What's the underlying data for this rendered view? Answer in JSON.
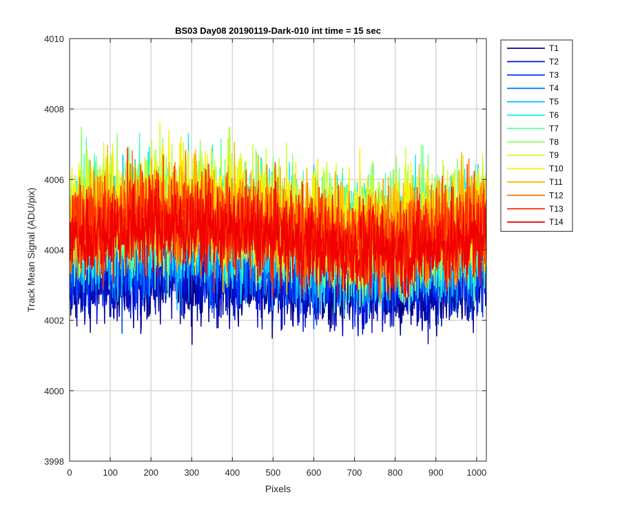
{
  "chart_data": {
    "type": "line",
    "title": "BS03 Day08 20190119-Dark-010 int time = 15 sec",
    "xlabel": "Pixels",
    "ylabel": "Track Mean Signal (ADU/pix)",
    "xlim": [
      0,
      1024
    ],
    "ylim": [
      3998,
      4010
    ],
    "xticks": [
      0,
      100,
      200,
      300,
      400,
      500,
      600,
      700,
      800,
      900,
      1000
    ],
    "yticks": [
      3998,
      4000,
      4002,
      4004,
      4006,
      4008,
      4010
    ],
    "grid": true,
    "legend_position": "outside-top-right",
    "series": [
      {
        "name": "T1",
        "color": "#00008F",
        "mean": 4002.9,
        "spread": 1.0
      },
      {
        "name": "T2",
        "color": "#0010C8",
        "mean": 4003.2,
        "spread": 1.1
      },
      {
        "name": "T3",
        "color": "#0040FF",
        "mean": 4003.6,
        "spread": 1.2
      },
      {
        "name": "T4",
        "color": "#0080FF",
        "mean": 4004.0,
        "spread": 1.3
      },
      {
        "name": "T5",
        "color": "#00BFFF",
        "mean": 4004.3,
        "spread": 1.4
      },
      {
        "name": "T6",
        "color": "#10EFEF",
        "mean": 4004.6,
        "spread": 1.5
      },
      {
        "name": "T7",
        "color": "#50FFB0",
        "mean": 4004.8,
        "spread": 1.5
      },
      {
        "name": "T8",
        "color": "#90FF70",
        "mean": 4004.9,
        "spread": 1.5
      },
      {
        "name": "T9",
        "color": "#CFFF30",
        "mean": 4005.0,
        "spread": 1.5
      },
      {
        "name": "T10",
        "color": "#FFEF00",
        "mean": 4004.9,
        "spread": 1.4
      },
      {
        "name": "T11",
        "color": "#FFB000",
        "mean": 4004.8,
        "spread": 1.3
      },
      {
        "name": "T12",
        "color": "#FF7000",
        "mean": 4004.7,
        "spread": 1.2
      },
      {
        "name": "T13",
        "color": "#FF3000",
        "mean": 4004.6,
        "spread": 1.2
      },
      {
        "name": "T14",
        "color": "#F00000",
        "mean": 4004.3,
        "spread": 1.1
      }
    ]
  }
}
